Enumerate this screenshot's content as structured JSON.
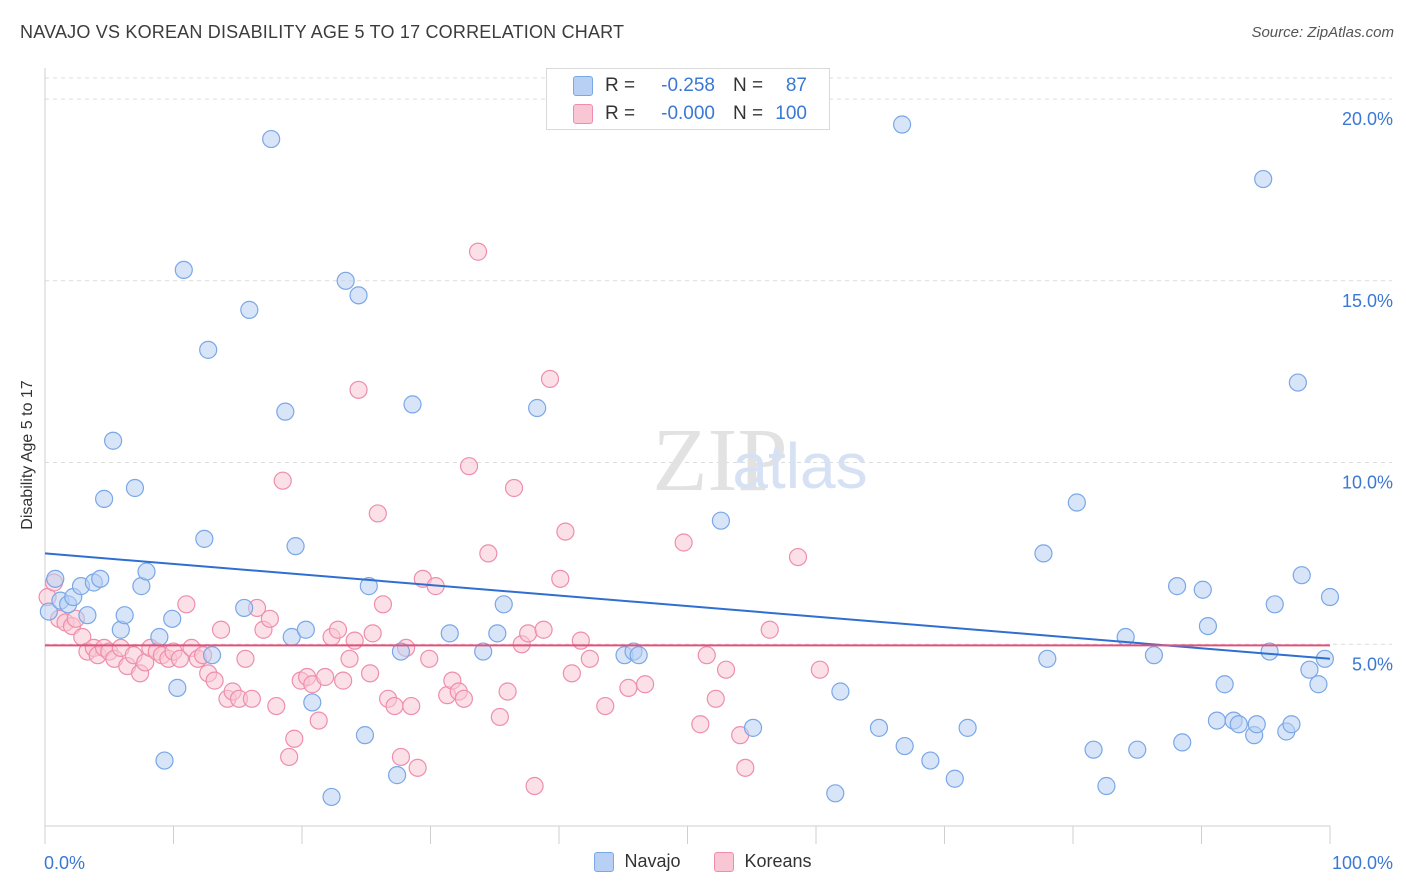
{
  "header": {
    "title": "NAVAJO VS KOREAN DISABILITY AGE 5 TO 17 CORRELATION CHART",
    "source": "Source: ZipAtlas.com"
  },
  "legend_box": {
    "rows": [
      {
        "r_label": "R =",
        "r_value": "-0.258",
        "n_label": "N =",
        "n_value": "87",
        "fill": "#b8d0f4",
        "stroke": "#7aa7e6",
        "value_color": "#3a78d4"
      },
      {
        "r_label": "R =",
        "r_value": "-0.000",
        "n_label": "N =",
        "n_value": "100",
        "fill": "#f9c6d4",
        "stroke": "#ee8eac",
        "value_color": "#3a78d4"
      }
    ]
  },
  "bottom_legend": [
    {
      "label": "Navajo",
      "fill": "#b8d0f4",
      "stroke": "#7aa7e6"
    },
    {
      "label": "Koreans",
      "fill": "#f9c6d4",
      "stroke": "#ee8eac"
    }
  ],
  "watermark": {
    "part1": "ZIP",
    "part2": "atlas"
  },
  "chart_data": {
    "type": "scatter",
    "title": "NAVAJO VS KOREAN DISABILITY AGE 5 TO 17 CORRELATION CHART",
    "xlabel": "",
    "ylabel": "Disability Age 5 to 17",
    "xlim": [
      0,
      100
    ],
    "ylim": [
      0,
      20.8
    ],
    "x_tick_labels": [
      {
        "value": 0,
        "label": "0.0%"
      },
      {
        "value": 100,
        "label": "100.0%"
      }
    ],
    "x_minor_ticks": [
      0,
      10,
      20,
      30,
      40,
      50,
      60,
      70,
      80,
      90,
      100
    ],
    "y_ticks": [
      {
        "value": 5,
        "label": "5.0%"
      },
      {
        "value": 10,
        "label": "10.0%"
      },
      {
        "value": 15,
        "label": "15.0%"
      },
      {
        "value": 20,
        "label": "20.0%"
      }
    ],
    "grid": "horizontal dashed",
    "legend_position": "top-center",
    "series": [
      {
        "name": "Navajo",
        "color": "#7aa7e6",
        "fill": "#b8d0f4",
        "trend": {
          "x": [
            0,
            100
          ],
          "y": [
            7.5,
            4.6
          ],
          "color": "#2f6fd1"
        },
        "points": [
          [
            0.3,
            5.9
          ],
          [
            0.8,
            6.8
          ],
          [
            1.2,
            6.2
          ],
          [
            1.8,
            6.1
          ],
          [
            2.2,
            6.3
          ],
          [
            2.8,
            6.6
          ],
          [
            3.3,
            5.8
          ],
          [
            3.8,
            6.7
          ],
          [
            4.3,
            6.8
          ],
          [
            4.6,
            9.0
          ],
          [
            5.3,
            10.6
          ],
          [
            5.9,
            5.4
          ],
          [
            6.2,
            5.8
          ],
          [
            7.0,
            9.3
          ],
          [
            7.5,
            6.6
          ],
          [
            7.9,
            7.0
          ],
          [
            8.9,
            5.2
          ],
          [
            9.3,
            1.8
          ],
          [
            9.9,
            5.7
          ],
          [
            10.3,
            3.8
          ],
          [
            10.8,
            15.3
          ],
          [
            12.4,
            7.9
          ],
          [
            12.7,
            13.1
          ],
          [
            13.0,
            4.7
          ],
          [
            15.5,
            6.0
          ],
          [
            15.9,
            14.2
          ],
          [
            17.6,
            18.9
          ],
          [
            18.7,
            11.4
          ],
          [
            19.2,
            5.2
          ],
          [
            19.5,
            7.7
          ],
          [
            20.3,
            5.4
          ],
          [
            20.8,
            3.4
          ],
          [
            22.3,
            0.8
          ],
          [
            23.4,
            15.0
          ],
          [
            24.4,
            14.6
          ],
          [
            24.9,
            2.5
          ],
          [
            25.2,
            6.6
          ],
          [
            27.4,
            1.4
          ],
          [
            27.7,
            4.8
          ],
          [
            28.6,
            11.6
          ],
          [
            31.5,
            5.3
          ],
          [
            34.1,
            4.8
          ],
          [
            35.2,
            5.3
          ],
          [
            35.7,
            6.1
          ],
          [
            38.3,
            11.5
          ],
          [
            45.1,
            4.7
          ],
          [
            45.8,
            4.8
          ],
          [
            46.2,
            4.7
          ],
          [
            52.6,
            8.4
          ],
          [
            55.1,
            2.7
          ],
          [
            61.5,
            0.9
          ],
          [
            61.9,
            3.7
          ],
          [
            64.9,
            2.7
          ],
          [
            66.7,
            19.3
          ],
          [
            66.9,
            2.2
          ],
          [
            68.9,
            1.8
          ],
          [
            70.8,
            1.3
          ],
          [
            71.8,
            2.7
          ],
          [
            77.7,
            7.5
          ],
          [
            78.0,
            4.6
          ],
          [
            80.3,
            8.9
          ],
          [
            81.6,
            2.1
          ],
          [
            82.6,
            1.1
          ],
          [
            84.1,
            5.2
          ],
          [
            85.0,
            2.1
          ],
          [
            86.3,
            4.7
          ],
          [
            88.1,
            6.6
          ],
          [
            88.5,
            2.3
          ],
          [
            90.1,
            6.5
          ],
          [
            90.5,
            5.5
          ],
          [
            91.2,
            2.9
          ],
          [
            91.8,
            3.9
          ],
          [
            92.5,
            2.9
          ],
          [
            92.9,
            2.8
          ],
          [
            94.1,
            2.5
          ],
          [
            94.3,
            2.8
          ],
          [
            94.8,
            17.8
          ],
          [
            95.3,
            4.8
          ],
          [
            95.7,
            6.1
          ],
          [
            96.6,
            2.6
          ],
          [
            97.0,
            2.8
          ],
          [
            97.5,
            12.2
          ],
          [
            97.8,
            6.9
          ],
          [
            98.4,
            4.3
          ],
          [
            99.1,
            3.9
          ],
          [
            99.6,
            4.6
          ],
          [
            100.0,
            6.3
          ]
        ]
      },
      {
        "name": "Koreans",
        "color": "#ee8eac",
        "fill": "#f9c6d4",
        "trend": {
          "x": [
            0,
            100
          ],
          "y": [
            4.97,
            4.97
          ],
          "color": "#e0507a"
        },
        "points": [
          [
            0.2,
            6.3
          ],
          [
            0.7,
            6.7
          ],
          [
            1.1,
            5.7
          ],
          [
            1.6,
            5.6
          ],
          [
            2.1,
            5.5
          ],
          [
            2.4,
            5.7
          ],
          [
            2.9,
            5.2
          ],
          [
            3.3,
            4.8
          ],
          [
            3.8,
            4.9
          ],
          [
            4.1,
            4.7
          ],
          [
            4.6,
            4.9
          ],
          [
            5.0,
            4.8
          ],
          [
            5.4,
            4.6
          ],
          [
            5.9,
            4.9
          ],
          [
            6.4,
            4.4
          ],
          [
            6.9,
            4.7
          ],
          [
            7.4,
            4.2
          ],
          [
            7.8,
            4.5
          ],
          [
            8.2,
            4.9
          ],
          [
            8.7,
            4.8
          ],
          [
            9.1,
            4.7
          ],
          [
            9.6,
            4.6
          ],
          [
            10.0,
            4.8
          ],
          [
            10.5,
            4.6
          ],
          [
            11.0,
            6.1
          ],
          [
            11.4,
            4.9
          ],
          [
            11.9,
            4.6
          ],
          [
            12.3,
            4.7
          ],
          [
            12.7,
            4.2
          ],
          [
            13.2,
            4.0
          ],
          [
            13.7,
            5.4
          ],
          [
            14.2,
            3.5
          ],
          [
            14.6,
            3.7
          ],
          [
            15.1,
            3.5
          ],
          [
            15.6,
            4.6
          ],
          [
            16.1,
            3.5
          ],
          [
            16.5,
            6.0
          ],
          [
            17.0,
            5.4
          ],
          [
            17.5,
            5.7
          ],
          [
            18.0,
            3.3
          ],
          [
            18.5,
            9.5
          ],
          [
            19.0,
            1.9
          ],
          [
            19.4,
            2.4
          ],
          [
            19.9,
            4.0
          ],
          [
            20.4,
            4.1
          ],
          [
            20.8,
            3.9
          ],
          [
            21.3,
            2.9
          ],
          [
            21.8,
            4.1
          ],
          [
            22.3,
            5.2
          ],
          [
            22.8,
            5.4
          ],
          [
            23.2,
            4.0
          ],
          [
            23.7,
            4.6
          ],
          [
            24.1,
            5.1
          ],
          [
            24.4,
            12.0
          ],
          [
            25.3,
            4.2
          ],
          [
            25.5,
            5.3
          ],
          [
            25.9,
            8.6
          ],
          [
            26.3,
            6.1
          ],
          [
            26.7,
            3.5
          ],
          [
            27.2,
            3.3
          ],
          [
            27.7,
            1.9
          ],
          [
            28.1,
            4.9
          ],
          [
            28.5,
            3.3
          ],
          [
            29.0,
            1.6
          ],
          [
            29.4,
            6.8
          ],
          [
            29.9,
            4.6
          ],
          [
            30.4,
            6.6
          ],
          [
            31.3,
            3.6
          ],
          [
            31.7,
            4.0
          ],
          [
            32.2,
            3.7
          ],
          [
            32.6,
            3.5
          ],
          [
            33.0,
            9.9
          ],
          [
            33.7,
            15.8
          ],
          [
            34.5,
            7.5
          ],
          [
            35.4,
            3.0
          ],
          [
            36.0,
            3.7
          ],
          [
            36.5,
            9.3
          ],
          [
            37.1,
            5.0
          ],
          [
            37.6,
            5.3
          ],
          [
            38.1,
            1.1
          ],
          [
            38.8,
            5.4
          ],
          [
            39.3,
            12.3
          ],
          [
            40.1,
            6.8
          ],
          [
            40.5,
            8.1
          ],
          [
            41.0,
            4.2
          ],
          [
            41.7,
            5.1
          ],
          [
            42.4,
            4.6
          ],
          [
            43.6,
            3.3
          ],
          [
            45.4,
            3.8
          ],
          [
            46.7,
            3.9
          ],
          [
            49.7,
            7.8
          ],
          [
            51.0,
            2.8
          ],
          [
            51.5,
            4.7
          ],
          [
            52.2,
            3.5
          ],
          [
            53.0,
            4.3
          ],
          [
            54.1,
            2.5
          ],
          [
            54.5,
            1.6
          ],
          [
            56.4,
            5.4
          ],
          [
            58.6,
            7.4
          ],
          [
            60.3,
            4.3
          ]
        ]
      }
    ]
  }
}
